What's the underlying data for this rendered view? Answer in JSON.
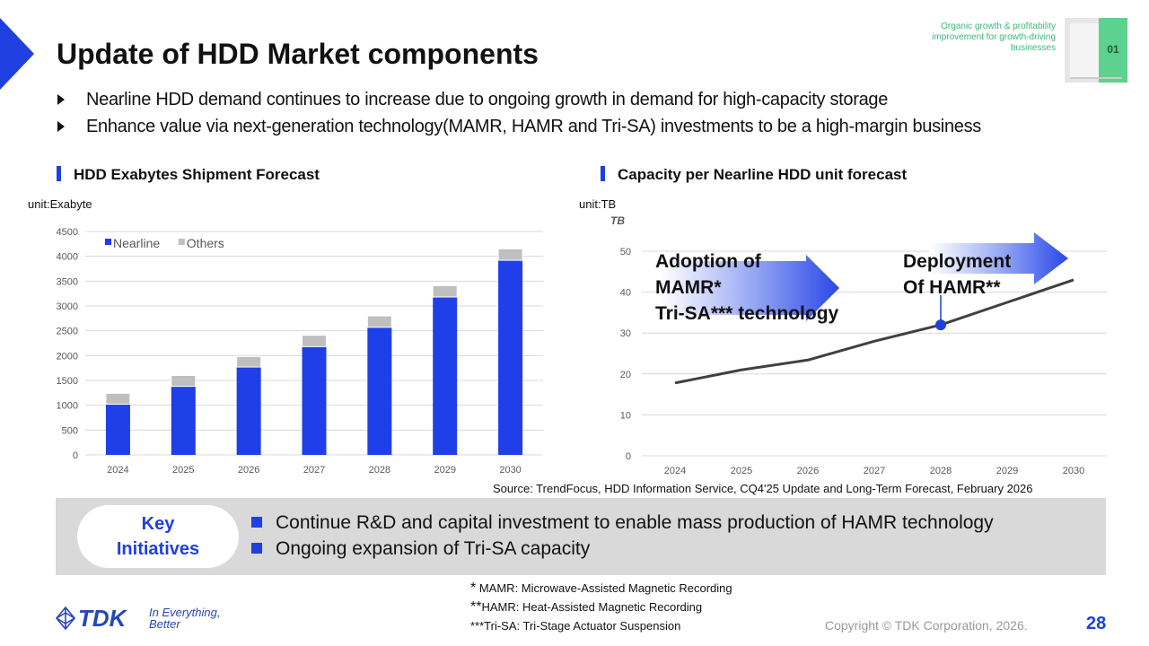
{
  "header": {
    "title": "Update of HDD Market components",
    "tag_text": "Organic growth & profitability improvement for growth-driving businesses",
    "tag_number": "01"
  },
  "bullets": [
    "Nearline HDD demand continues to increase due to ongoing growth in demand for high-capacity storage",
    "Enhance value via next-generation technology(MAMR, HAMR and Tri-SA)  investments to be a high-margin business"
  ],
  "left_section": {
    "title": "HDD Exabytes Shipment Forecast",
    "unit": "unit:Exabyte"
  },
  "right_section": {
    "title": "Capacity per Nearline HDD unit forecast",
    "unit": "unit:TB"
  },
  "chart_data": [
    {
      "type": "bar",
      "stacked": true,
      "categories": [
        "2024",
        "2025",
        "2026",
        "2027",
        "2028",
        "2029",
        "2030"
      ],
      "series": [
        {
          "name": "Nearline",
          "color": "#1f3fe8",
          "values": [
            1020,
            1380,
            1770,
            2180,
            2570,
            3180,
            3920
          ]
        },
        {
          "name": "Others",
          "color": "#bfbfbf",
          "values": [
            220,
            220,
            210,
            230,
            230,
            230,
            230
          ]
        }
      ],
      "ylim": [
        0,
        4500
      ],
      "yticks": [
        0,
        500,
        1000,
        1500,
        2000,
        2500,
        3000,
        3500,
        4000,
        4500
      ],
      "legend": "top-left",
      "grid": true
    },
    {
      "type": "line",
      "x": [
        "2024",
        "2025",
        "2026",
        "2027",
        "2028",
        "2029",
        "2030"
      ],
      "series": [
        {
          "color": "#404040",
          "values": [
            17.8,
            21,
            23.4,
            28,
            32,
            37.5,
            43
          ]
        }
      ],
      "ylabel": "TB",
      "ylim": [
        0,
        50
      ],
      "yticks": [
        0,
        10,
        20,
        30,
        40,
        50
      ],
      "grid": true,
      "highlight": {
        "x": "2028",
        "value": 32,
        "color": "#1f3fe0"
      },
      "annotations": [
        {
          "lines": [
            "Adoption of",
            "MAMR*",
            "Tri-SA*** technology"
          ]
        },
        {
          "lines": [
            "Deployment",
            "Of HAMR**"
          ]
        }
      ]
    }
  ],
  "source": "Source: TrendFocus, HDD Information Service, CQ4'25 Update and Long-Term Forecast, February 2026",
  "key": {
    "label_line1": "Key",
    "label_line2": "Initiatives",
    "items": [
      "Continue R&D and capital investment to enable mass production of HAMR technology",
      "Ongoing expansion of Tri-SA capacity"
    ]
  },
  "footnotes": [
    {
      "mark": "*",
      "text": " MAMR: Microwave-Assisted Magnetic Recording"
    },
    {
      "mark": "**",
      "text": "HAMR: Heat-Assisted Magnetic Recording"
    },
    {
      "mark": "",
      "text": "***Tri-SA: Tri-Stage Actuator Suspension"
    }
  ],
  "footer": {
    "logo_text": "TDK",
    "tagline_line1": "In Everything,",
    "tagline_line2": "Better",
    "copyright": "Copyright  © TDK Corporation, 2026.",
    "page": "28"
  }
}
